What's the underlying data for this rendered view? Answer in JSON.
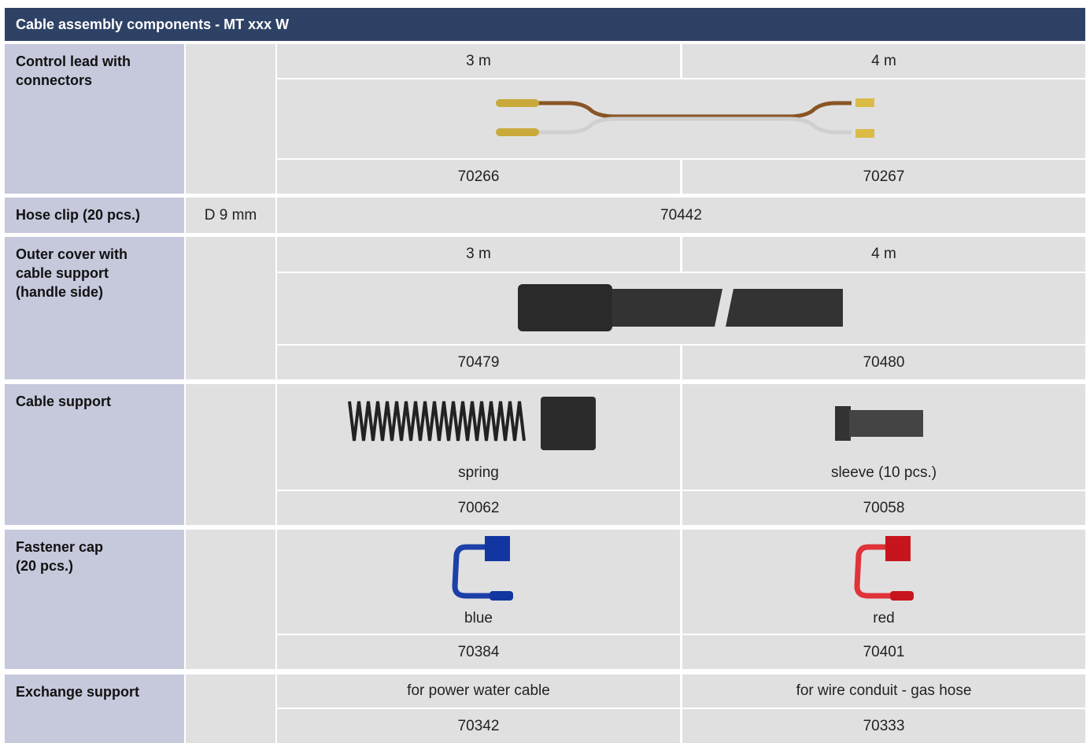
{
  "header": {
    "title": "Cable assembly components - MT xxx W"
  },
  "rows": [
    {
      "label": [
        "Control lead with",
        "connectors"
      ],
      "sizes": [
        "3 m",
        "4 m"
      ],
      "parts": [
        "70266",
        "70267"
      ]
    },
    {
      "label": [
        "Hose clip (20 pcs.)"
      ],
      "spec": "D 9 mm",
      "part": "70442"
    },
    {
      "label": [
        "Outer cover with",
        "cable support",
        "(handle side)"
      ],
      "sizes": [
        "3 m",
        "4 m"
      ],
      "parts": [
        "70479",
        "70480"
      ]
    },
    {
      "label": [
        "Cable support"
      ],
      "variants": [
        "spring",
        "sleeve (10 pcs.)"
      ],
      "parts": [
        "70062",
        "70058"
      ]
    },
    {
      "label": [
        "Fastener cap",
        "(20 pcs.)"
      ],
      "variants": [
        "blue",
        "red"
      ],
      "parts": [
        "70384",
        "70401"
      ]
    },
    {
      "label": [
        "Exchange support"
      ],
      "variants": [
        "for power water cable",
        "for wire conduit - gas hose"
      ],
      "parts": [
        "70342",
        "70333"
      ]
    }
  ]
}
